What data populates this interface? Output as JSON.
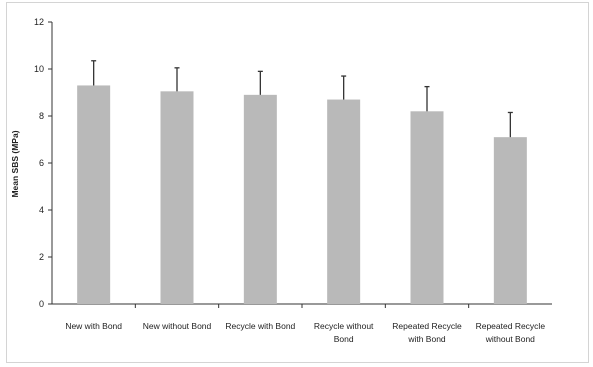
{
  "chart_data": {
    "type": "bar",
    "title": "",
    "xlabel": "",
    "ylabel": "Mean SBS (MPa)",
    "ylim": [
      0,
      12
    ],
    "yticks": [
      0,
      2,
      4,
      6,
      8,
      10,
      12
    ],
    "grid": false,
    "legend": "none",
    "bar_color": "#b9b9b9",
    "error_color": "#333333",
    "categories": [
      [
        "New with Bond"
      ],
      [
        "New without Bond"
      ],
      [
        "Recycle with Bond"
      ],
      [
        "Recycle without",
        "Bond"
      ],
      [
        "Repeated Recycle",
        "with Bond"
      ],
      [
        "Repeated Recycle",
        "without Bond"
      ]
    ],
    "values": [
      9.3,
      9.05,
      8.9,
      8.7,
      8.2,
      7.1
    ],
    "error_plus": [
      1.05,
      1.0,
      1.0,
      1.0,
      1.05,
      1.05
    ]
  }
}
